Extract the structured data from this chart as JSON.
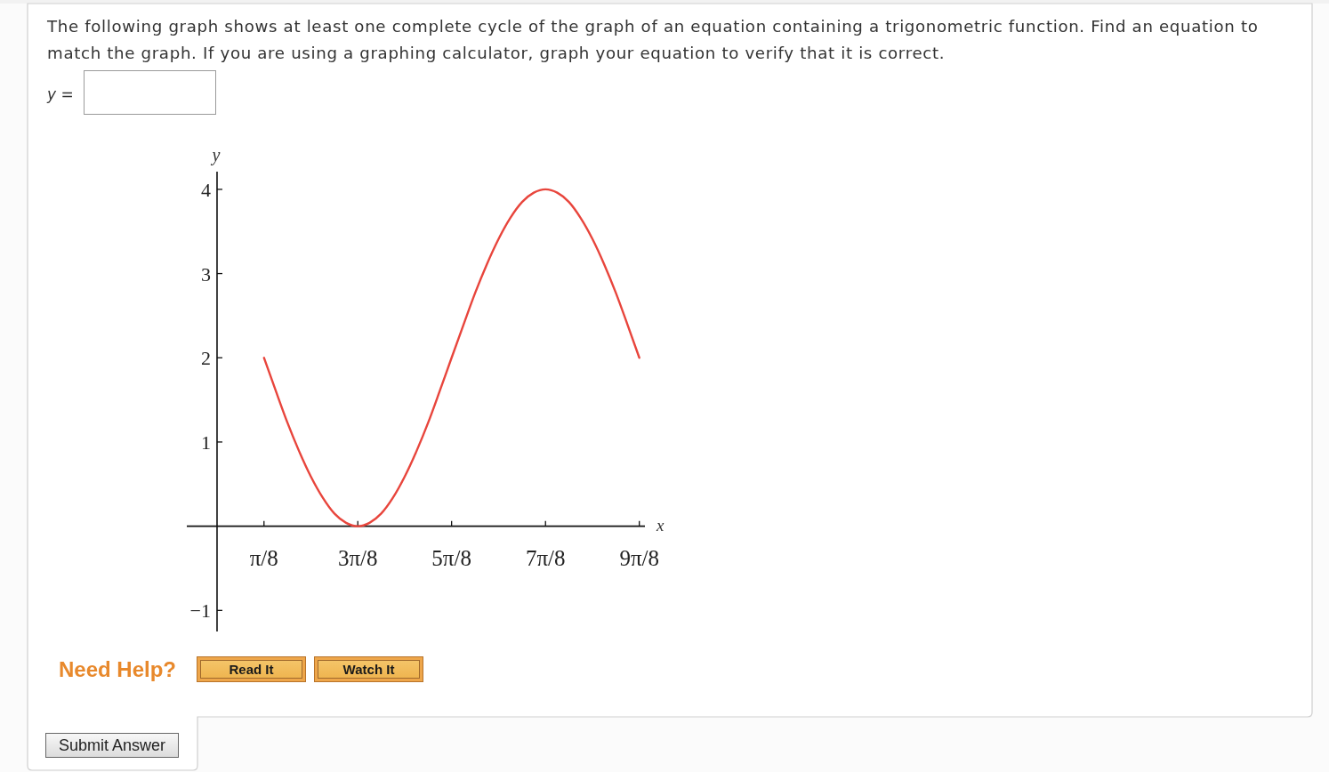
{
  "chart_data": {
    "type": "line",
    "title": "The following graph shows at least one complete cycle of the graph of an equation containing a trigonometric function. Find an equation to match the graph. If you are using a graphing calculator, graph your equation to verify that it is correct.",
    "xlabel": "x",
    "ylabel": "y",
    "annotations": [
      "y =",
      "Need Help?",
      "Read It",
      "Watch It",
      "Submit Answer"
    ],
    "x": [
      0.393,
      0.491,
      0.589,
      0.687,
      0.785,
      0.884,
      0.982,
      1.08,
      1.178,
      1.276,
      1.374,
      1.473,
      1.571,
      1.669,
      1.767,
      1.865,
      1.963,
      2.062,
      2.16,
      2.258,
      2.356,
      2.454,
      2.553,
      2.651,
      2.749,
      2.847,
      2.945,
      3.043,
      3.142,
      3.24,
      3.338,
      3.436,
      3.534
    ],
    "series": [
      {
        "color": "#e8453c",
        "values": [
          2,
          1.61,
          1.23,
          0.89,
          0.59,
          0.34,
          0.15,
          0.04,
          0,
          0.04,
          0.15,
          0.34,
          0.59,
          0.89,
          1.23,
          1.61,
          2,
          2.39,
          2.77,
          3.11,
          3.41,
          3.66,
          3.85,
          3.96,
          4,
          3.96,
          3.85,
          3.66,
          3.41,
          3.11,
          2.77,
          2.39,
          2
        ]
      }
    ],
    "xlim": [
      -0.253,
      3.581
    ],
    "ylim": [
      -1.25,
      4.21
    ],
    "xticks": [
      {
        "value": 0.393,
        "label": "π/8"
      },
      {
        "value": 1.178,
        "label": "3π/8"
      },
      {
        "value": 1.963,
        "label": "5π/8"
      },
      {
        "value": 2.749,
        "label": "7π/8"
      },
      {
        "value": 3.534,
        "label": "9π/8"
      }
    ],
    "yticks": [
      {
        "value": -1,
        "label": "−1"
      },
      1,
      2,
      3,
      4
    ]
  }
}
